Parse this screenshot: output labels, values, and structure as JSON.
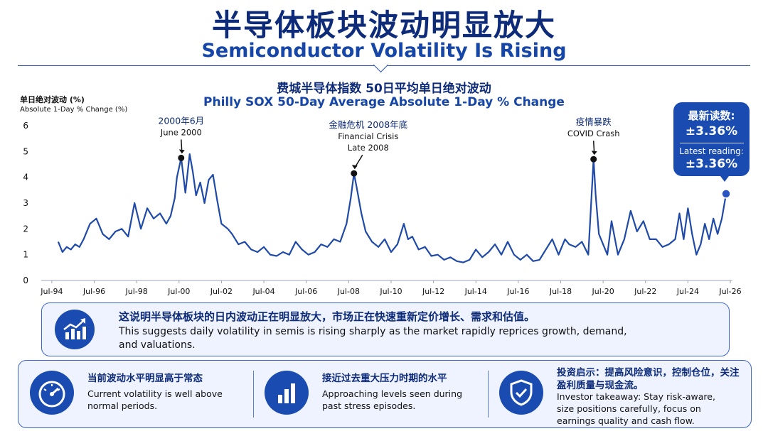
{
  "header": {
    "title_cn": "半导体板块波动明显放大",
    "title_en": "Semiconductor Volatility Is Rising"
  },
  "chart_data": {
    "type": "line",
    "title": "费城半导体指数 50日平均单日绝对波动",
    "subtitle": "Philly SOX 50-Day Average Absolute 1-Day % Change",
    "ylabel_cn": "单日绝对波动 (%)",
    "ylabel": "Absolute 1-Day % Change (%)",
    "ylim": [
      0,
      6
    ],
    "yticks": [
      "0",
      "1",
      "2",
      "3",
      "4",
      "5",
      "6"
    ],
    "xlim": [
      1994.0,
      2026.6
    ],
    "xtick_labels": [
      "Jul-94",
      "Jul-96",
      "Jul-98",
      "Jul-00",
      "Jul-02",
      "Jul-04",
      "Jul-06",
      "Jul-08",
      "Jul-10",
      "Jul-12",
      "Jul-14",
      "Jul-16",
      "Jul-18",
      "Jul-20",
      "Jul-22",
      "Jul-24",
      "Jul-26"
    ],
    "xtick_years": [
      1994.5,
      1996.5,
      1998.5,
      2000.5,
      2002.5,
      2004.5,
      2006.5,
      2008.5,
      2010.5,
      2012.5,
      2014.5,
      2016.5,
      2018.5,
      2020.5,
      2022.5,
      2024.5,
      2026.5
    ],
    "grid": false,
    "color": "#1f4aa8",
    "series": [
      {
        "x": [
          1994.8,
          1995.0,
          1995.2,
          1995.4,
          1995.6,
          1995.8,
          1996.0,
          1996.3,
          1996.6,
          1996.9,
          1997.2,
          1997.5,
          1997.8,
          1998.1,
          1998.4,
          1998.7,
          1999.0,
          1999.3,
          1999.6,
          1999.9,
          2000.1,
          2000.3,
          2000.4,
          2000.6,
          2000.8,
          2001.0,
          2001.15,
          2001.3,
          2001.5,
          2001.7,
          2001.9,
          2002.1,
          2002.3,
          2002.5,
          2002.8,
          2003.0,
          2003.3,
          2003.6,
          2003.9,
          2004.2,
          2004.5,
          2004.8,
          2005.1,
          2005.4,
          2005.7,
          2006.0,
          2006.3,
          2006.6,
          2006.9,
          2007.2,
          2007.5,
          2007.8,
          2008.1,
          2008.4,
          2008.6,
          2008.75,
          2008.9,
          2009.1,
          2009.3,
          2009.6,
          2009.9,
          2010.2,
          2010.5,
          2010.8,
          2011.1,
          2011.3,
          2011.5,
          2011.8,
          2012.1,
          2012.4,
          2012.7,
          2013.0,
          2013.3,
          2013.6,
          2013.9,
          2014.2,
          2014.5,
          2014.8,
          2015.1,
          2015.4,
          2015.7,
          2016.0,
          2016.3,
          2016.6,
          2016.9,
          2017.2,
          2017.5,
          2017.8,
          2018.1,
          2018.4,
          2018.7,
          2018.9,
          2019.2,
          2019.5,
          2019.8,
          2020.05,
          2020.15,
          2020.3,
          2020.5,
          2020.7,
          2020.9,
          2021.2,
          2021.5,
          2021.8,
          2022.1,
          2022.4,
          2022.7,
          2023.0,
          2023.3,
          2023.6,
          2023.9,
          2024.1,
          2024.3,
          2024.5,
          2024.7,
          2024.9,
          2025.1,
          2025.3,
          2025.5,
          2025.7,
          2025.9,
          2026.1,
          2026.3
        ],
        "y": [
          1.5,
          1.1,
          1.3,
          1.2,
          1.4,
          1.3,
          1.6,
          2.2,
          2.4,
          1.8,
          1.6,
          1.9,
          2.0,
          1.7,
          3.0,
          2.0,
          2.8,
          2.4,
          2.6,
          2.2,
          2.5,
          3.2,
          4.0,
          4.75,
          3.4,
          4.9,
          4.2,
          3.3,
          3.8,
          3.0,
          3.9,
          4.1,
          3.1,
          2.2,
          2.0,
          1.8,
          1.4,
          1.5,
          1.2,
          1.1,
          1.3,
          1.0,
          0.95,
          1.1,
          1.0,
          1.5,
          1.2,
          1.0,
          1.1,
          1.4,
          1.3,
          1.6,
          1.5,
          2.2,
          3.2,
          4.15,
          3.5,
          2.6,
          1.9,
          1.5,
          1.3,
          1.6,
          1.1,
          1.4,
          2.2,
          1.6,
          1.7,
          1.2,
          1.3,
          0.95,
          1.0,
          0.8,
          0.9,
          0.75,
          0.7,
          0.8,
          1.2,
          0.9,
          1.1,
          1.4,
          1.0,
          1.5,
          1.0,
          0.8,
          1.0,
          0.75,
          0.8,
          1.2,
          1.6,
          1.0,
          1.6,
          1.4,
          1.3,
          1.5,
          1.0,
          4.7,
          3.3,
          1.8,
          1.4,
          1.0,
          2.3,
          1.0,
          1.6,
          2.7,
          1.9,
          2.3,
          1.6,
          1.6,
          1.3,
          1.4,
          1.6,
          2.6,
          1.6,
          2.8,
          1.8,
          1.0,
          1.4,
          2.2,
          1.6,
          2.4,
          1.8,
          2.4,
          3.36
        ]
      }
    ],
    "annotations": [
      {
        "x": 2000.6,
        "y": 4.75,
        "label_cn": "2000年6月",
        "label_en": "June 2000"
      },
      {
        "x": 2008.75,
        "y": 4.15,
        "label_cn": "金融危机 2008年底",
        "label_en": "Financial Crisis",
        "label_en2": "Late 2008"
      },
      {
        "x": 2020.05,
        "y": 4.7,
        "label_cn": "疫情暴跌",
        "label_en": "COVID Crash"
      }
    ],
    "latest": {
      "x": 2026.3,
      "y": 3.36
    }
  },
  "badge": {
    "label_cn": "最新读数:",
    "value_cn": "±3.36%",
    "label_en": "Latest reading:",
    "value_en": "±3.36%"
  },
  "summary": {
    "cn": "这说明半导体板块的日内波动正在明显放大，市场正在快速重新定价增长、需求和估值。",
    "en": "This suggests daily volatility in semis is rising sharply as the market rapidly reprices growth, demand, and valuations."
  },
  "points": [
    {
      "icon": "speedometer-icon",
      "cn": "当前波动水平明显高于常态",
      "en": "Current volatility is well above normal periods."
    },
    {
      "icon": "bar-chart-icon",
      "cn": "接近过去重大压力时期的水平",
      "en": "Approaching levels seen during past stress episodes."
    },
    {
      "icon": "shield-check-icon",
      "cn": "投资启示：提高风险意识，控制仓位，关注盈利质量与现金流。",
      "en": "Investor takeaway: Stay risk-aware, size positions carefully, focus on earnings quality and cash flow."
    }
  ],
  "colors": {
    "accent": "#1a4bb0",
    "line": "#1f4aa8",
    "title": "#0d2b78"
  }
}
